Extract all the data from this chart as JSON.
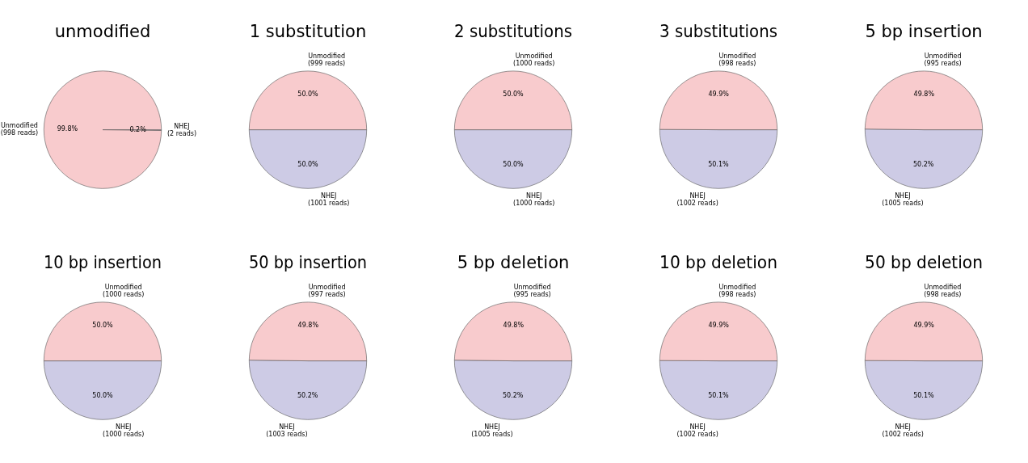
{
  "chart_data": [
    {
      "type": "pie",
      "title": "unmodified",
      "categories": [
        "Unmodified\n(998 reads)",
        "NHEJ\n(2 reads)"
      ],
      "values": [
        99.8,
        0.2
      ],
      "value_labels": [
        "99.8%",
        "0.2%"
      ],
      "colors": [
        "#f8cbcd",
        "#cdcbe5"
      ]
    },
    {
      "type": "pie",
      "title": "1 substitution",
      "categories": [
        "Unmodified\n(999 reads)",
        "NHEJ\n(1001 reads)"
      ],
      "values": [
        50.0,
        50.0
      ],
      "value_labels": [
        "50.0%",
        "50.0%"
      ],
      "colors": [
        "#f8cbcd",
        "#cdcbe5"
      ]
    },
    {
      "type": "pie",
      "title": "2 substitutions",
      "categories": [
        "Unmodified\n(1000 reads)",
        "NHEJ\n(1000 reads)"
      ],
      "values": [
        50.0,
        50.0
      ],
      "value_labels": [
        "50.0%",
        "50.0%"
      ],
      "colors": [
        "#f8cbcd",
        "#cdcbe5"
      ]
    },
    {
      "type": "pie",
      "title": "3 substitutions",
      "categories": [
        "Unmodified\n(998 reads)",
        "NHEJ\n(1002 reads)"
      ],
      "values": [
        49.9,
        50.1
      ],
      "value_labels": [
        "49.9%",
        "50.1%"
      ],
      "colors": [
        "#f8cbcd",
        "#cdcbe5"
      ]
    },
    {
      "type": "pie",
      "title": "5 bp insertion",
      "categories": [
        "Unmodified\n(995 reads)",
        "NHEJ\n(1005 reads)"
      ],
      "values": [
        49.8,
        50.2
      ],
      "value_labels": [
        "49.8%",
        "50.2%"
      ],
      "colors": [
        "#f8cbcd",
        "#cdcbe5"
      ]
    },
    {
      "type": "pie",
      "title": "10 bp insertion",
      "categories": [
        "Unmodified\n(1000 reads)",
        "NHEJ\n(1000 reads)"
      ],
      "values": [
        50.0,
        50.0
      ],
      "value_labels": [
        "50.0%",
        "50.0%"
      ],
      "colors": [
        "#f8cbcd",
        "#cdcbe5"
      ]
    },
    {
      "type": "pie",
      "title": "50 bp insertion",
      "categories": [
        "Unmodified\n(997 reads)",
        "NHEJ\n(1003 reads)"
      ],
      "values": [
        49.8,
        50.2
      ],
      "value_labels": [
        "49.8%",
        "50.2%"
      ],
      "colors": [
        "#f8cbcd",
        "#cdcbe5"
      ]
    },
    {
      "type": "pie",
      "title": "5 bp deletion",
      "categories": [
        "Unmodified\n(995 reads)",
        "NHEJ\n(1005 reads)"
      ],
      "values": [
        49.8,
        50.2
      ],
      "value_labels": [
        "49.8%",
        "50.2%"
      ],
      "colors": [
        "#f8cbcd",
        "#cdcbe5"
      ]
    },
    {
      "type": "pie",
      "title": "10 bp deletion",
      "categories": [
        "Unmodified\n(998 reads)",
        "NHEJ\n(1002 reads)"
      ],
      "values": [
        49.9,
        50.1
      ],
      "value_labels": [
        "49.9%",
        "50.1%"
      ],
      "colors": [
        "#f8cbcd",
        "#cdcbe5"
      ]
    },
    {
      "type": "pie",
      "title": "50 bp deletion",
      "categories": [
        "Unmodified\n(998 reads)",
        "NHEJ\n(1002 reads)"
      ],
      "values": [
        49.9,
        50.1
      ],
      "value_labels": [
        "49.9%",
        "50.1%"
      ],
      "colors": [
        "#f8cbcd",
        "#cdcbe5"
      ]
    }
  ]
}
